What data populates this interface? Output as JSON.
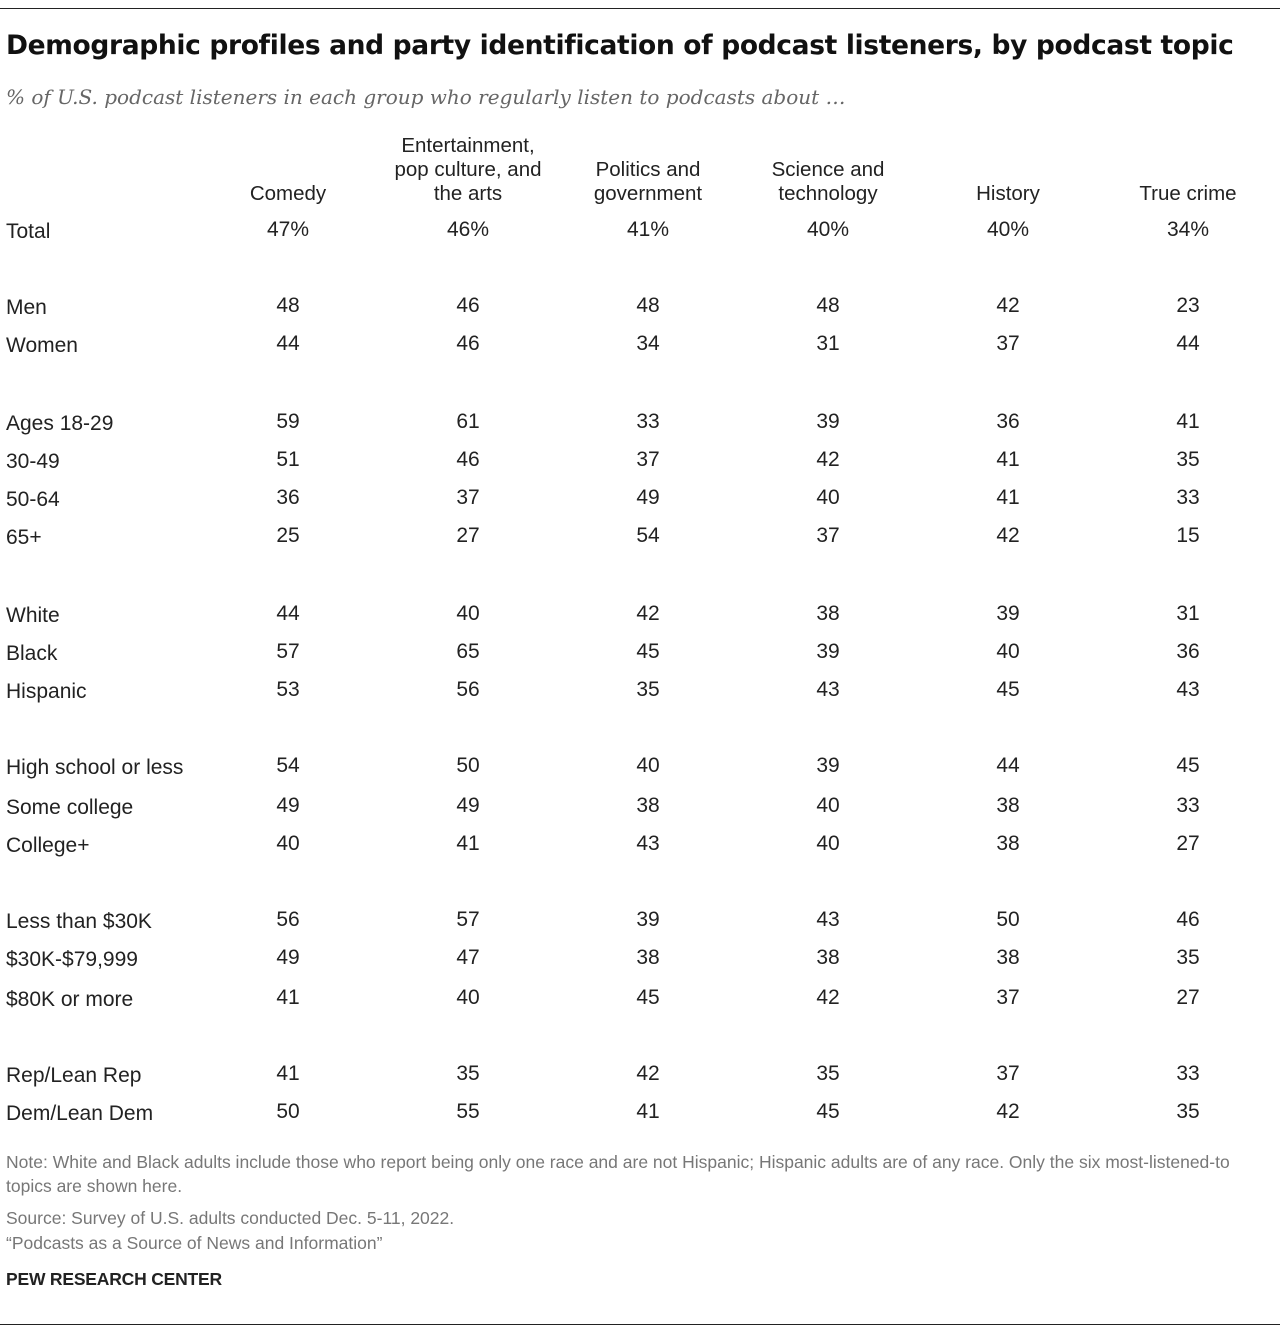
{
  "title": "Demographic profiles and party identification of podcast listeners, by podcast topic",
  "subtitle": "% of U.S. podcast listeners in each group who regularly listen to podcasts about …",
  "chart_data": {
    "type": "table",
    "title": "Demographic profiles and party identification of podcast listeners, by podcast topic",
    "columns": [
      "Comedy",
      "Entertainment, pop culture, and the arts",
      "Politics and government",
      "Science and technology",
      "History",
      "True crime"
    ],
    "column_header_lines": [
      [
        "Comedy"
      ],
      [
        "Entertainment,",
        "pop culture, and",
        "the arts"
      ],
      [
        "Politics and",
        "government"
      ],
      [
        "Science and",
        "technology"
      ],
      [
        "History"
      ],
      [
        "True crime"
      ]
    ],
    "rows": [
      {
        "label": "Total",
        "values": [
          "47%",
          "46%",
          "41%",
          "40%",
          "40%",
          "34%"
        ]
      },
      {
        "label": "Men",
        "values": [
          "48",
          "46",
          "48",
          "48",
          "42",
          "23"
        ]
      },
      {
        "label": "Women",
        "values": [
          "44",
          "46",
          "34",
          "31",
          "37",
          "44"
        ]
      },
      {
        "label": "Ages 18-29",
        "values": [
          "59",
          "61",
          "33",
          "39",
          "36",
          "41"
        ]
      },
      {
        "label": "30-49",
        "values": [
          "51",
          "46",
          "37",
          "42",
          "41",
          "35"
        ]
      },
      {
        "label": "50-64",
        "values": [
          "36",
          "37",
          "49",
          "40",
          "41",
          "33"
        ]
      },
      {
        "label": "65+",
        "values": [
          "25",
          "27",
          "54",
          "37",
          "42",
          "15"
        ]
      },
      {
        "label": "White",
        "values": [
          "44",
          "40",
          "42",
          "38",
          "39",
          "31"
        ]
      },
      {
        "label": "Black",
        "values": [
          "57",
          "65",
          "45",
          "39",
          "40",
          "36"
        ]
      },
      {
        "label": "Hispanic",
        "values": [
          "53",
          "56",
          "35",
          "43",
          "45",
          "43"
        ]
      },
      {
        "label": "High school or less",
        "values": [
          "54",
          "50",
          "40",
          "39",
          "44",
          "45"
        ]
      },
      {
        "label": "Some college",
        "values": [
          "49",
          "49",
          "38",
          "40",
          "38",
          "33"
        ]
      },
      {
        "label": "College+",
        "values": [
          "40",
          "41",
          "43",
          "40",
          "38",
          "27"
        ]
      },
      {
        "label": "Less than $30K",
        "values": [
          "56",
          "57",
          "39",
          "43",
          "50",
          "46"
        ]
      },
      {
        "label": "$30K-$79,999",
        "values": [
          "49",
          "47",
          "38",
          "38",
          "38",
          "35"
        ]
      },
      {
        "label": "$80K or more",
        "values": [
          "41",
          "40",
          "45",
          "42",
          "37",
          "27"
        ]
      },
      {
        "label": "Rep/Lean Rep",
        "values": [
          "41",
          "35",
          "42",
          "35",
          "37",
          "33"
        ]
      },
      {
        "label": "Dem/Lean Dem",
        "values": [
          "50",
          "55",
          "41",
          "45",
          "42",
          "35"
        ]
      }
    ]
  },
  "notes": {
    "note": "Note: White and Black adults include those who report being only one race and are not Hispanic; Hispanic adults are of any race. Only the six most-listened-to topics are shown here.",
    "source": "Source: Survey of U.S. adults conducted Dec. 5-11, 2022.",
    "report": "“Podcasts as a Source of News and Information”"
  },
  "brand": "PEW RESEARCH CENTER"
}
